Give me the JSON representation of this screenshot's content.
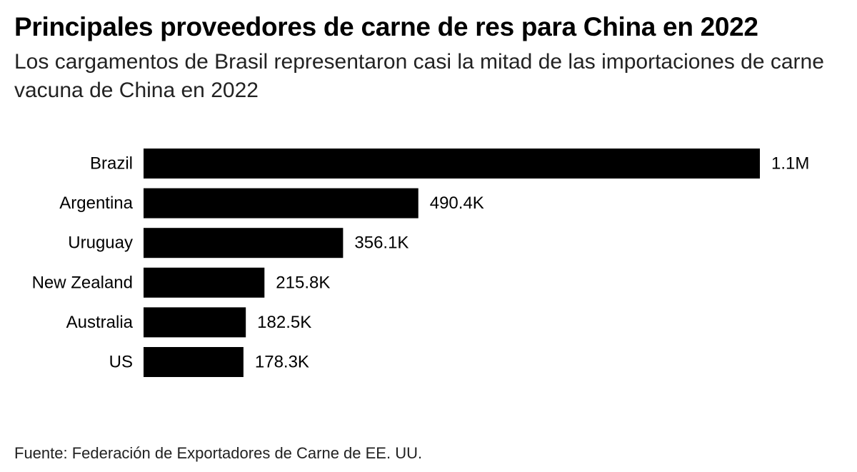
{
  "title": "Principales proveedores de carne de res para China en 2022",
  "subtitle": "Los cargamentos de Brasil representaron casi la mitad de las importaciones de carne vacuna de China en 2022",
  "source": "Fuente: Federación de Exportadores de Carne de EE. UU.",
  "colors": {
    "bar": "#000000",
    "text": "#000000"
  },
  "chart_data": {
    "type": "bar",
    "orientation": "horizontal",
    "categories": [
      "Brazil",
      "Argentina",
      "Uruguay",
      "New Zealand",
      "Australia",
      "US"
    ],
    "values": [
      1100000,
      490400,
      356100,
      215800,
      182500,
      178300
    ],
    "value_labels": [
      "1.1M",
      "490.4K",
      "356.1K",
      "215.8K",
      "182.5K",
      "178.3K"
    ],
    "xlim": [
      0,
      1100000
    ],
    "grid": false,
    "legend": "none"
  }
}
